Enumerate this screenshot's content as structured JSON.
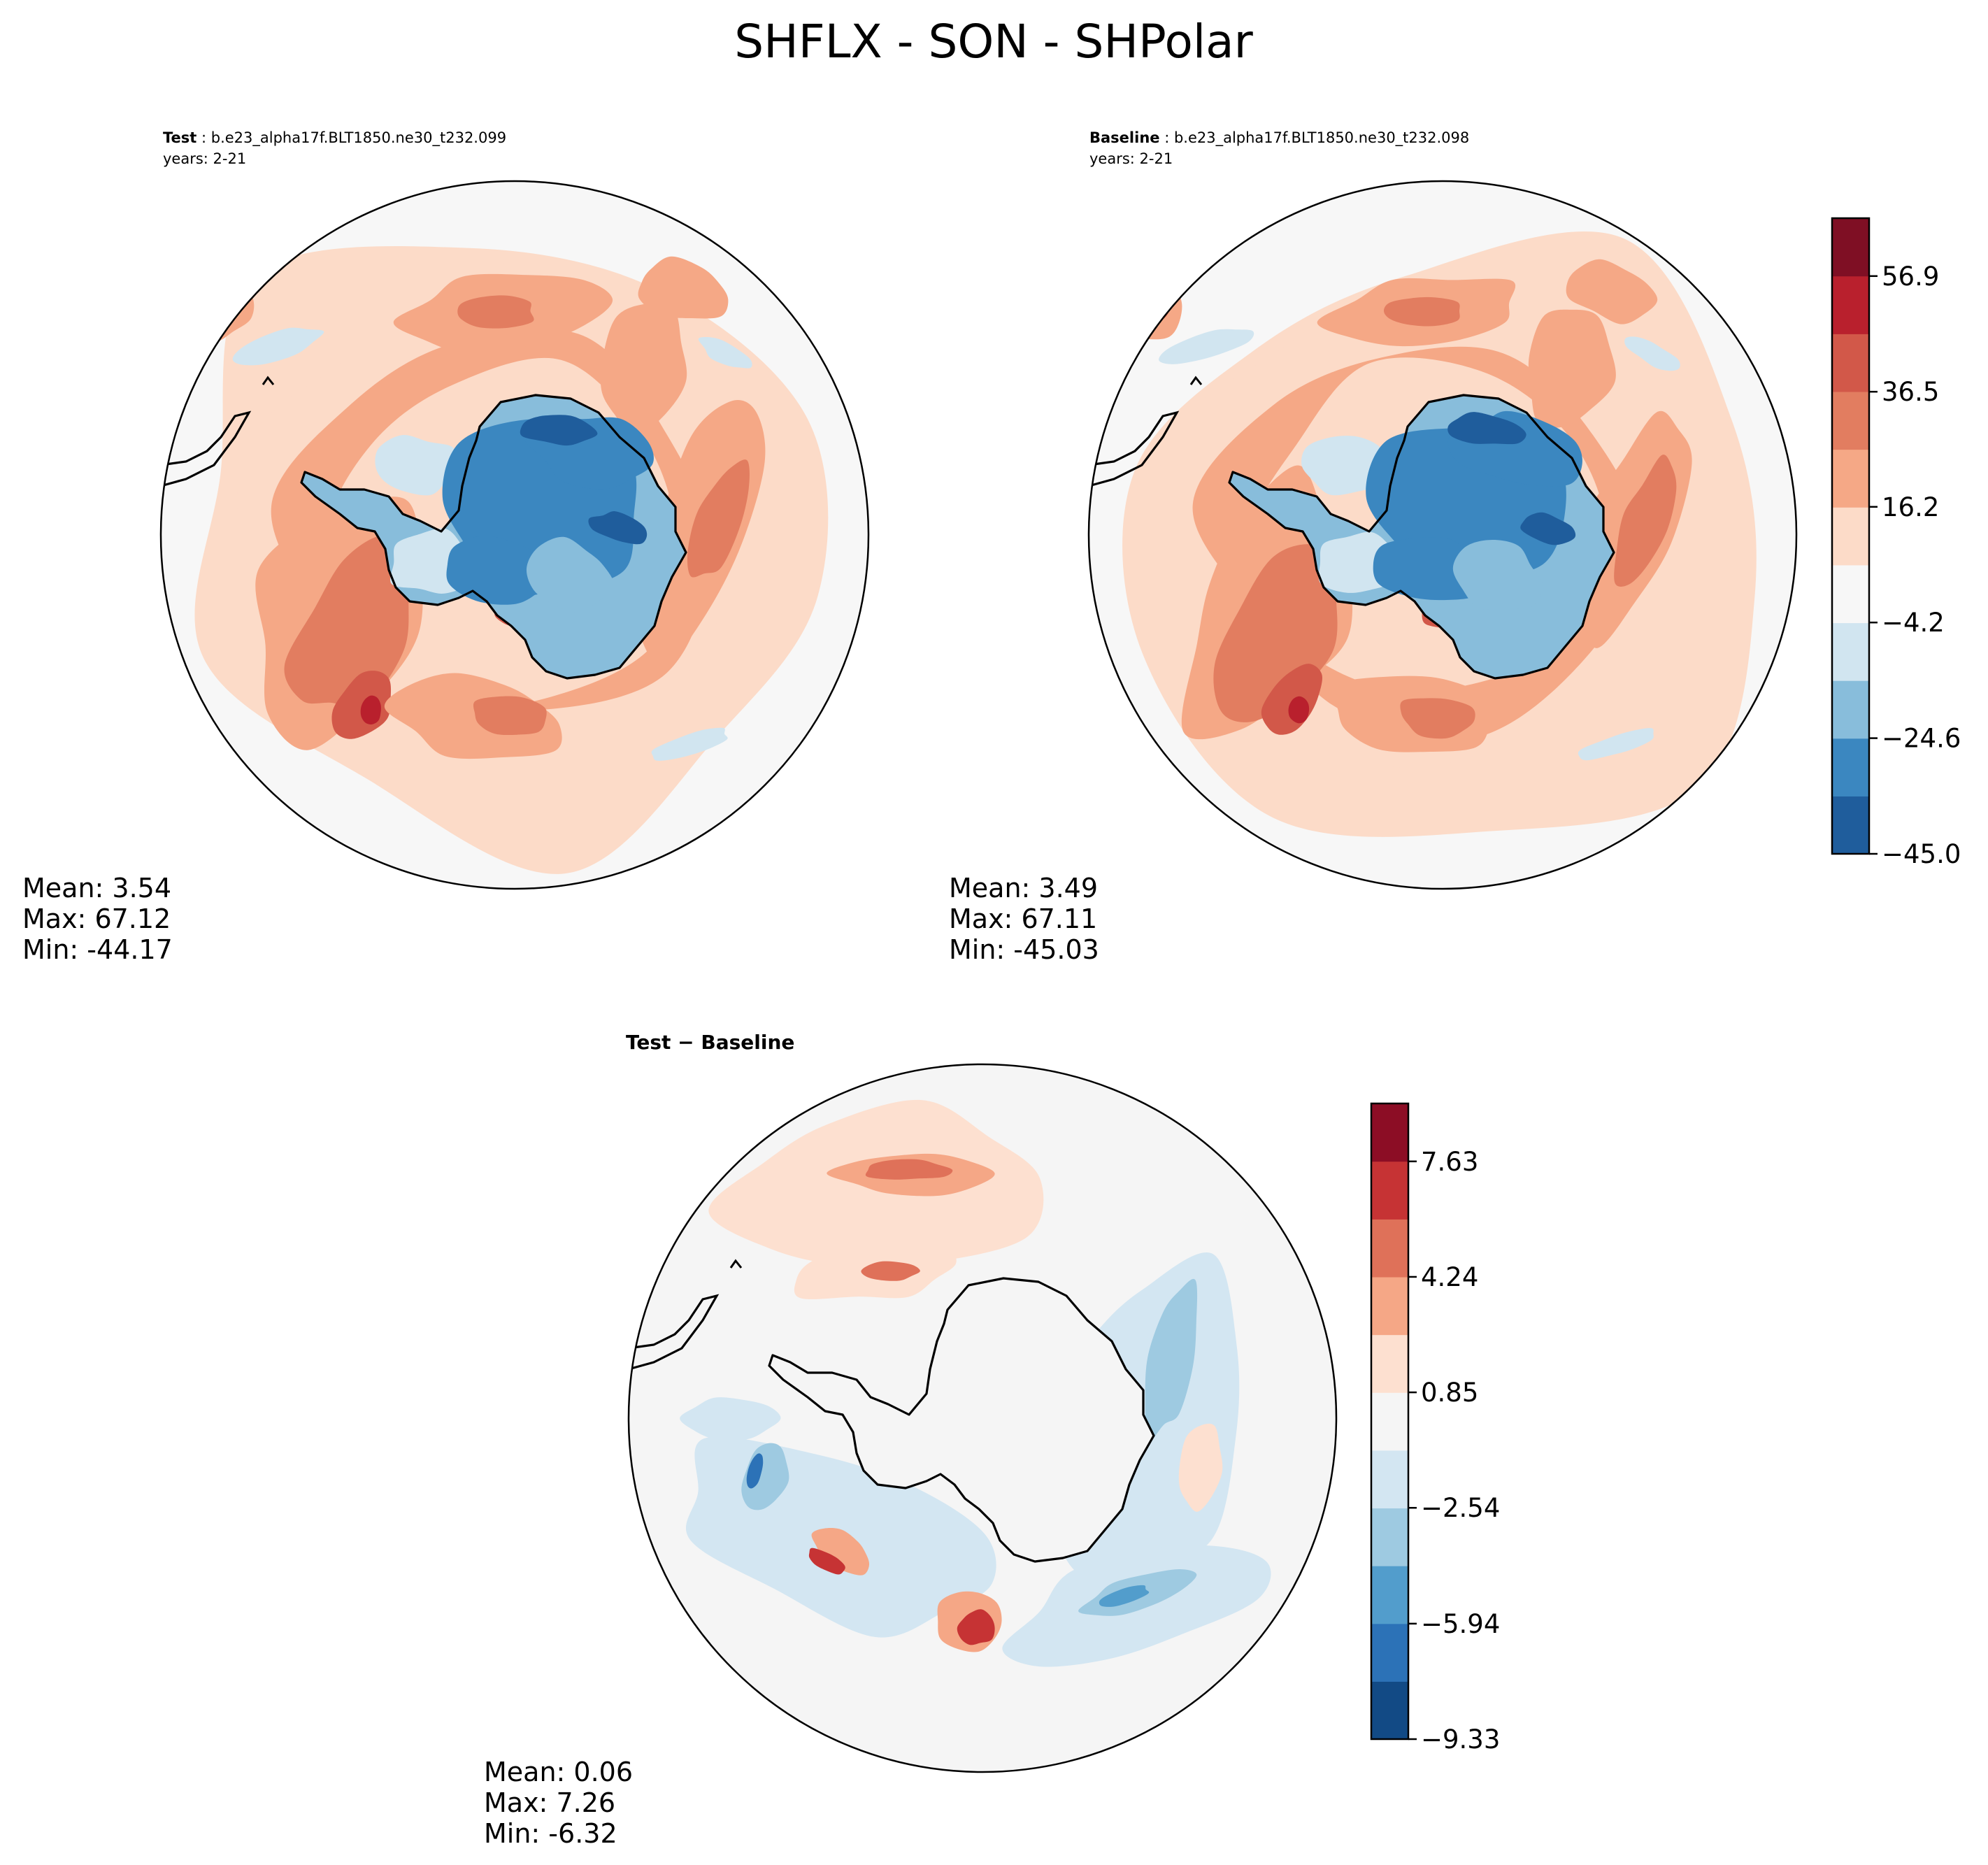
{
  "title": "SHFLX - SON - SHPolar",
  "colors": {
    "main_levels": [
      "#053061",
      "#1f5d9c",
      "#3b87c0",
      "#88bddb",
      "#d1e5f0",
      "#f7f7f7",
      "#fcdbc8",
      "#f5a886",
      "#e27d60",
      "#d25849",
      "#b9202d",
      "#7f0f24"
    ],
    "diff_levels": [
      "#124a85",
      "#2c72b7",
      "#529dcc",
      "#9ecae1",
      "#d3e6f2",
      "#f5f5f5",
      "#fde0d0",
      "#f5a786",
      "#df7159",
      "#c63334",
      "#8c0d25"
    ],
    "coastline": "#000000"
  },
  "panels": {
    "test": {
      "label_bold": "Test",
      "label_rest": " : b.e23_alpha17f.BLT1850.ne30_t232.099",
      "years": "years: 2-21",
      "mean": "Mean:  3.54",
      "max": "Max: 67.12",
      "min": "Min: -44.17"
    },
    "baseline": {
      "label_bold": "Baseline",
      "label_rest": " : b.e23_alpha17f.BLT1850.ne30_t232.098",
      "years": "years: 2-21",
      "mean": "Mean:  3.49",
      "max": "Max: 67.11",
      "min": "Min: -45.03"
    },
    "diff": {
      "label_bold": "Test − Baseline",
      "mean": "Mean:  0.06",
      "max": "Max:  7.26",
      "min": "Min: -6.32"
    }
  },
  "chart_data": [
    {
      "type": "heatmap",
      "projection": "south-polar-stereographic",
      "name": "Test",
      "colorbar": {
        "ticks": [],
        "range": [
          -45.0,
          67.12
        ]
      },
      "stats": {
        "mean": 3.54,
        "max": 67.12,
        "min": -44.17
      }
    },
    {
      "type": "heatmap",
      "projection": "south-polar-stereographic",
      "name": "Baseline",
      "colorbar": {
        "range": [
          -45.0,
          67.11
        ],
        "ticks": [
          "−45.0",
          "−24.6",
          "−4.2",
          "16.2",
          "36.5",
          "56.9"
        ],
        "tick_values": [
          -45.0,
          -24.6,
          -4.2,
          16.2,
          36.5,
          56.9
        ],
        "n_levels": 11
      },
      "stats": {
        "mean": 3.49,
        "max": 67.11,
        "min": -45.03
      }
    },
    {
      "type": "heatmap",
      "projection": "south-polar-stereographic",
      "name": "Test − Baseline",
      "colorbar": {
        "range": [
          -9.33,
          9.33
        ],
        "ticks": [
          "−9.33",
          "−5.94",
          "−2.54",
          "0.85",
          "4.24",
          "7.63"
        ],
        "tick_values": [
          -9.33,
          -5.94,
          -2.54,
          0.85,
          4.24,
          7.63
        ],
        "n_levels": 11
      },
      "stats": {
        "mean": 0.06,
        "max": 7.26,
        "min": -6.32
      }
    }
  ]
}
